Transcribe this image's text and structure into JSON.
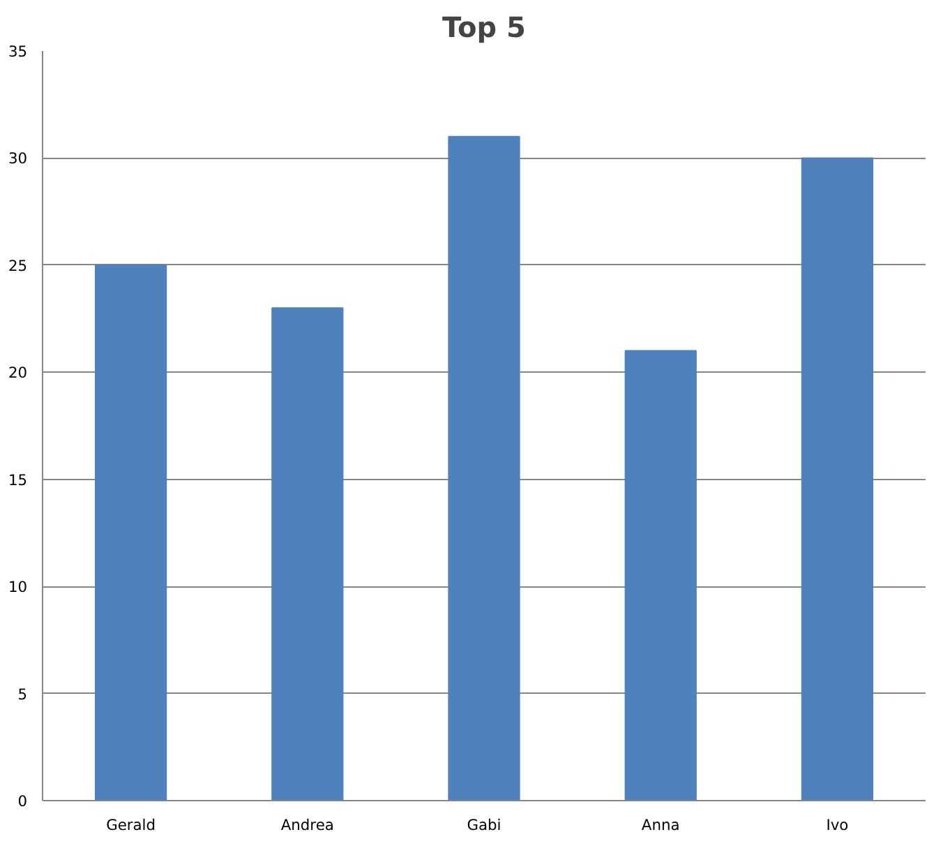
{
  "chart_data": {
    "type": "bar",
    "title": "Top 5",
    "categories": [
      "Gerald",
      "Andrea",
      "Gabi",
      "Anna",
      "Ivo"
    ],
    "values": [
      25,
      23,
      31,
      21,
      30
    ],
    "color": "#4f81bd",
    "ylim": [
      0,
      35
    ],
    "yticks": [
      0,
      5,
      10,
      15,
      20,
      25,
      30,
      35
    ],
    "grid": "y"
  }
}
